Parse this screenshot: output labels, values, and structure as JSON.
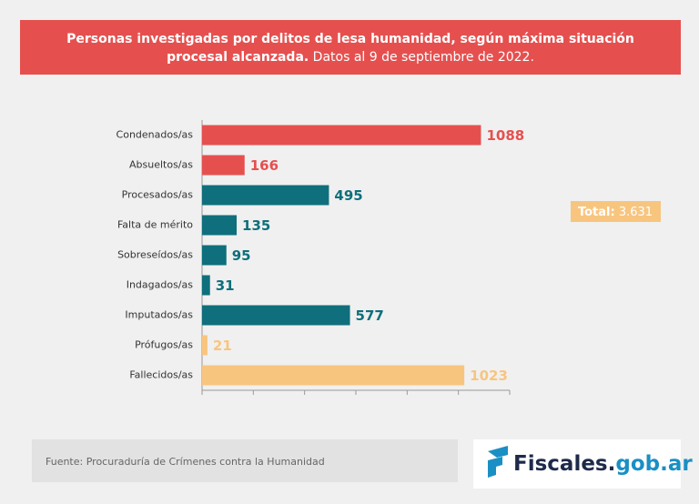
{
  "chart_data": {
    "type": "barh",
    "title": [
      "Personas investigadas por delitos de lesa humanidad, según máxima situación",
      "procesal alcanzada."
    ],
    "subtitle": "Datos al 9 de septiembre de 2022.",
    "categories": [
      "Condenados/as",
      "Absueltos/as",
      "Procesados/as",
      "Falta de mérito",
      "Sobreseídos/as",
      "Indagados/as",
      "Imputados/as",
      "Prófugos/as",
      "Fallecidos/as"
    ],
    "values": [
      1088,
      166,
      495,
      135,
      95,
      31,
      577,
      21,
      1023
    ],
    "colors": [
      "#e5504f",
      "#e5504f",
      "#0f6f7c",
      "#0f6f7c",
      "#0f6f7c",
      "#0f6f7c",
      "#0f6f7c",
      "#f8c57f",
      "#f8c57f"
    ],
    "xlim": [
      0,
      1200
    ],
    "xticks": [
      0,
      200,
      400,
      600,
      800,
      1000,
      1200
    ],
    "annotation": [
      "Total:",
      "3.631"
    ],
    "source": "Fuente: Procuraduría de Crímenes contra la Humanidad",
    "logo": [
      "Fiscales.",
      "gob.ar"
    ]
  }
}
